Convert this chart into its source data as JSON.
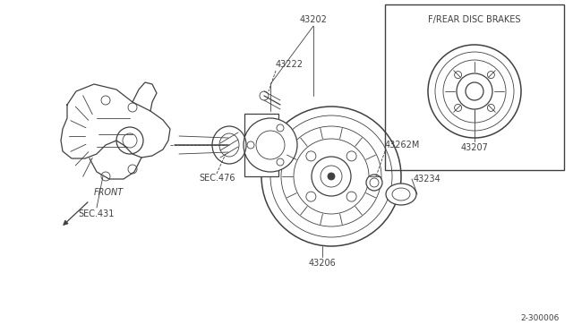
{
  "background_color": "#ffffff",
  "fig_width": 6.4,
  "fig_height": 3.72,
  "dpi": 100,
  "line_color": "#404040",
  "text_color": "#404040",
  "fs": 7.0,
  "inset_label": "F/REAR DISC BRAKES",
  "inset_part": "43207",
  "front_label": "FRONT",
  "diagram_id": "2-300006"
}
